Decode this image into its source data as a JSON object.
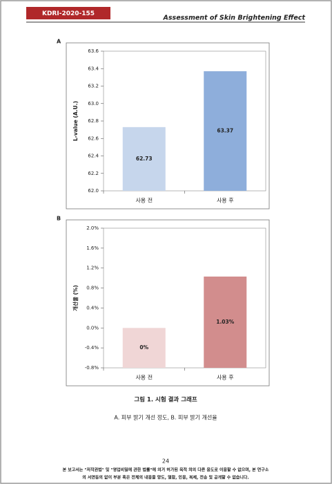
{
  "header": {
    "code": "KDRI-2020-155",
    "title": "Assessment of Skin Brightening Effect"
  },
  "chart_data": [
    {
      "type": "bar",
      "panel": "A",
      "categories": [
        "사용 전",
        "사용 후"
      ],
      "values": [
        62.73,
        63.37
      ],
      "colors": [
        "#c6d6ec",
        "#8eaedb"
      ],
      "ylabel": "L-value (A.U.)",
      "ylim": [
        62.0,
        63.6
      ],
      "yticks": [
        {
          "value": 62.0,
          "label": "62.0"
        },
        62.2,
        62.4,
        62.6,
        62.8,
        {
          "value": 63.0,
          "label": "63.0"
        },
        63.2,
        63.4,
        63.6
      ]
    },
    {
      "type": "bar",
      "panel": "B",
      "categories": [
        "사용 전",
        "사용 후"
      ],
      "values": [
        0,
        1.03
      ],
      "value_labels": [
        "0%",
        "1.03%"
      ],
      "colors": [
        "#f0d6d6",
        "#d28d8d"
      ],
      "ylabel": "개선율 (%)",
      "ylim": [
        -0.8,
        2.0
      ],
      "yticks": [
        {
          "value": -0.8,
          "label": "-0.8%"
        },
        {
          "value": -0.4,
          "label": "-0.4%"
        },
        {
          "value": 0,
          "label": "0.0%"
        },
        {
          "value": 0.4,
          "label": "0.4%"
        },
        {
          "value": 0.8,
          "label": "0.8%"
        },
        {
          "value": 1.2,
          "label": "1.2%"
        },
        {
          "value": 1.6,
          "label": "1.6%"
        },
        {
          "value": 2.0,
          "label": "2.0%"
        }
      ]
    }
  ],
  "caption": {
    "title": "그림 1. 시험 결과 그래프",
    "subtitle": "A. 피부 밝기 개선 정도, B. 피부 밝기 개선율"
  },
  "footer": {
    "page": "24",
    "lines": [
      "본 보고서는 \"저작권법\" 및 \"영업비밀에 관한 법률\"에 의거 허가된 목적 외의 다른 용도로 이용할 수 없으며, 본 연구소",
      "의 서면동의 없이 부분 혹은 전체의 내용을 양도, 열람, 인용, 복제, 전송 및 공개할 수 없습니다."
    ]
  }
}
